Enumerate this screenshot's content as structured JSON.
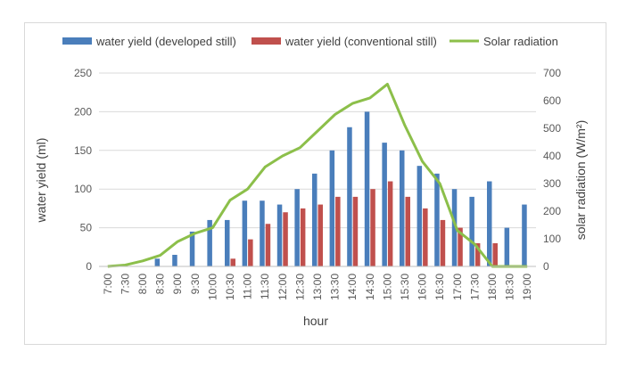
{
  "chart_data": {
    "type": "bar+line",
    "title": "",
    "categories": [
      "7:00",
      "7:30",
      "8:00",
      "8:30",
      "9:00",
      "9:30",
      "10:00",
      "10:30",
      "11:00",
      "11:30",
      "12:00",
      "12:30",
      "13:00",
      "13:30",
      "14:00",
      "14:30",
      "15:00",
      "15:30",
      "16:00",
      "16:30",
      "17:00",
      "17:30",
      "18:00",
      "18:30",
      "19:00"
    ],
    "series": [
      {
        "name": "water yield (developed still)",
        "kind": "bar",
        "axis": "left",
        "color": "#4a7ebb",
        "values": [
          0,
          0,
          0,
          10,
          15,
          45,
          60,
          60,
          85,
          85,
          80,
          100,
          120,
          150,
          180,
          200,
          160,
          150,
          130,
          120,
          100,
          90,
          110,
          50,
          80
        ]
      },
      {
        "name": "water yield (conventional still)",
        "kind": "bar",
        "axis": "left",
        "color": "#c0504d",
        "values": [
          0,
          0,
          0,
          0,
          0,
          0,
          0,
          10,
          35,
          55,
          70,
          75,
          80,
          90,
          90,
          100,
          110,
          90,
          75,
          60,
          50,
          30,
          30,
          0,
          0
        ]
      },
      {
        "name": "Solar radiation",
        "kind": "line",
        "axis": "right",
        "color": "#8cbf4a",
        "values": [
          0,
          5,
          20,
          40,
          90,
          120,
          140,
          240,
          280,
          360,
          400,
          430,
          490,
          550,
          590,
          610,
          660,
          510,
          380,
          300,
          130,
          80,
          0,
          0,
          0
        ]
      }
    ],
    "xlabel": "hour",
    "ylabel": "water yield (ml)",
    "y2label": "solar radiation (W/m²)",
    "ylim": [
      0,
      250
    ],
    "yticks": [
      "0",
      "50",
      "100",
      "150",
      "200",
      "250"
    ],
    "y2lim": [
      0,
      700
    ],
    "y2ticks": [
      "0",
      "100",
      "200",
      "300",
      "400",
      "500",
      "600",
      "700"
    ],
    "legend_position": "top",
    "grid": "horizontal"
  }
}
